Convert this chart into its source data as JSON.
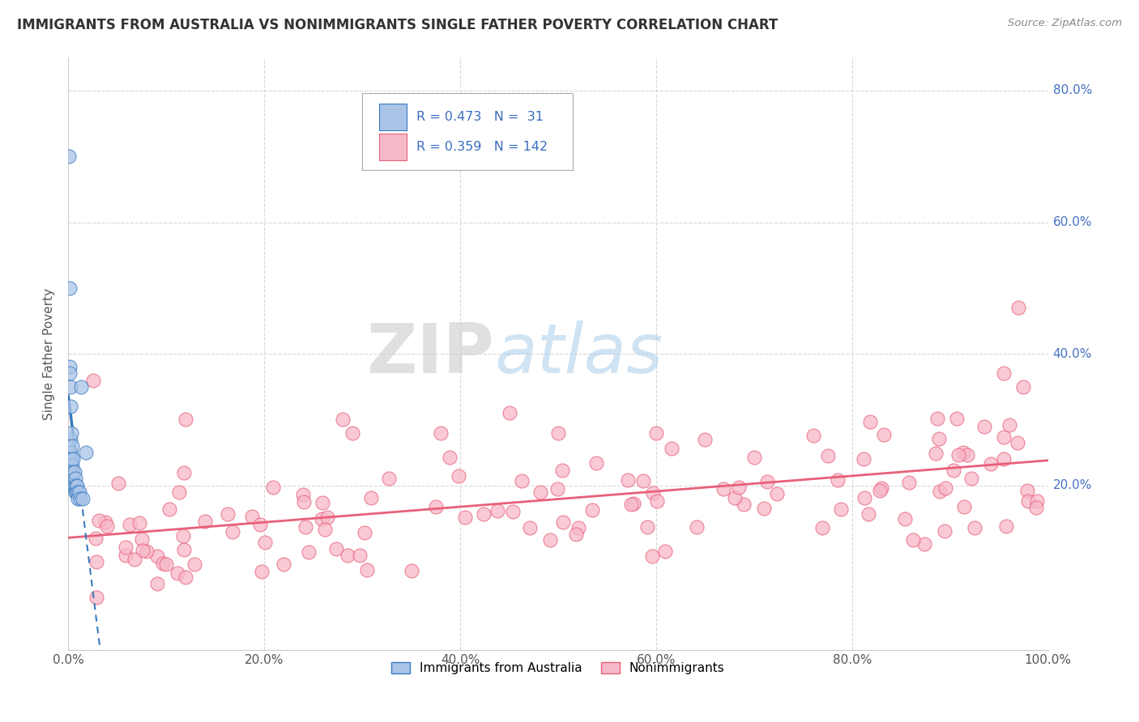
{
  "title": "IMMIGRANTS FROM AUSTRALIA VS NONIMMIGRANTS SINGLE FATHER POVERTY CORRELATION CHART",
  "source": "Source: ZipAtlas.com",
  "ylabel": "Single Father Poverty",
  "R1": 0.473,
  "N1": 31,
  "R2": 0.359,
  "N2": 142,
  "legend_label1": "Immigrants from Australia",
  "legend_label2": "Nonimmigrants",
  "color_blue": "#aac4e8",
  "color_pink": "#f7b8c8",
  "line_blue": "#3a7abf",
  "line_pink": "#e8607a",
  "watermark_zip": "ZIP",
  "watermark_atlas": "atlas",
  "background_color": "#ffffff",
  "grid_color": "#d8d8d8",
  "xlim": [
    0.0,
    1.0
  ],
  "ylim": [
    -0.05,
    0.85
  ],
  "ytick_positions": [
    0.0,
    0.2,
    0.4,
    0.6,
    0.8
  ],
  "ytick_labels": [
    "",
    "20.0%",
    "40.0%",
    "60.0%",
    "80.0%"
  ],
  "xtick_positions": [
    0.0,
    0.2,
    0.4,
    0.6,
    0.8,
    1.0
  ],
  "xtick_labels": [
    "0.0%",
    "20.0%",
    "40.0%",
    "60.0%",
    "80.0%",
    "100.0%"
  ]
}
